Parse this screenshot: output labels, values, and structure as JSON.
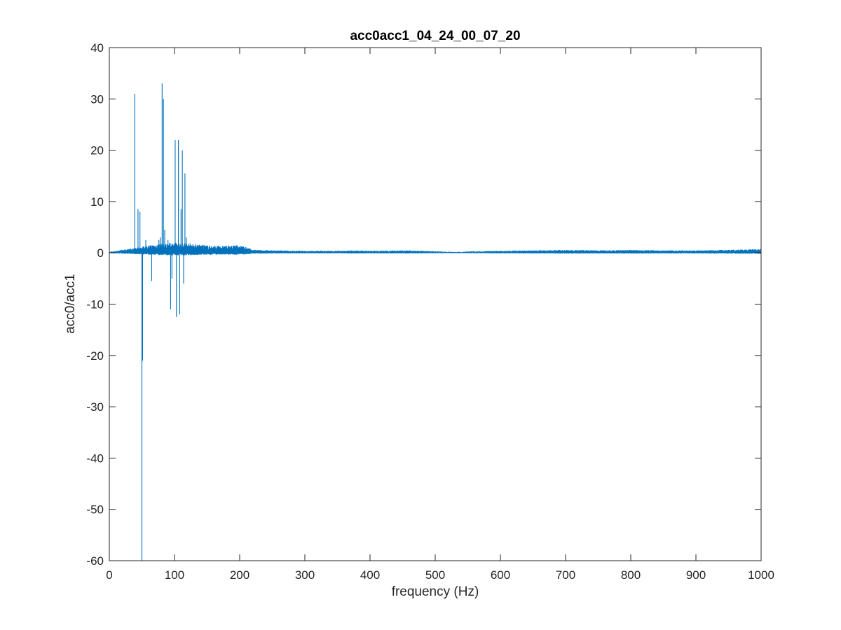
{
  "chart_data": {
    "type": "line",
    "title": "acc0acc1_04_24_00_07_20",
    "xlabel": "frequency (Hz)",
    "ylabel": "acc0/acc1",
    "xlim": [
      0,
      1000
    ],
    "ylim": [
      -60,
      40
    ],
    "xticks": [
      0,
      100,
      200,
      300,
      400,
      500,
      600,
      700,
      800,
      900,
      1000
    ],
    "yticks": [
      -60,
      -50,
      -40,
      -30,
      -20,
      -10,
      0,
      10,
      20,
      30,
      40
    ],
    "grid": false,
    "line_color": "#0072BD",
    "series": [
      {
        "baseline": {
          "x": [
            0,
            20,
            40,
            60,
            80,
            100,
            120,
            140,
            160,
            180,
            200,
            210,
            220,
            250,
            300,
            350,
            380,
            400,
            450,
            480,
            500,
            530,
            560,
            600,
            650,
            700,
            750,
            800,
            850,
            900,
            950,
            1000
          ],
          "amplitude": [
            0.2,
            0.6,
            1.0,
            1.5,
            1.8,
            2.0,
            2.0,
            1.6,
            1.4,
            1.4,
            1.5,
            1.2,
            0.6,
            0.5,
            0.4,
            0.4,
            0.5,
            0.4,
            0.5,
            0.4,
            0.3,
            0.2,
            0.3,
            0.4,
            0.5,
            0.6,
            0.5,
            0.6,
            0.5,
            0.5,
            0.6,
            0.8
          ]
        },
        "spikes": {
          "x": [
            39,
            44,
            47,
            50,
            51,
            56,
            65,
            76,
            78,
            81,
            83,
            85,
            90,
            94,
            96,
            101,
            103,
            106,
            108,
            110,
            112,
            114,
            116,
            118
          ],
          "y": [
            31,
            8.5,
            8,
            -60,
            -21,
            2.5,
            -5.5,
            2.5,
            3,
            33,
            30,
            4.5,
            2.5,
            -11,
            -5,
            22,
            -12.5,
            22,
            -12,
            8.5,
            20,
            -6,
            15.5,
            3
          ]
        }
      }
    ]
  }
}
